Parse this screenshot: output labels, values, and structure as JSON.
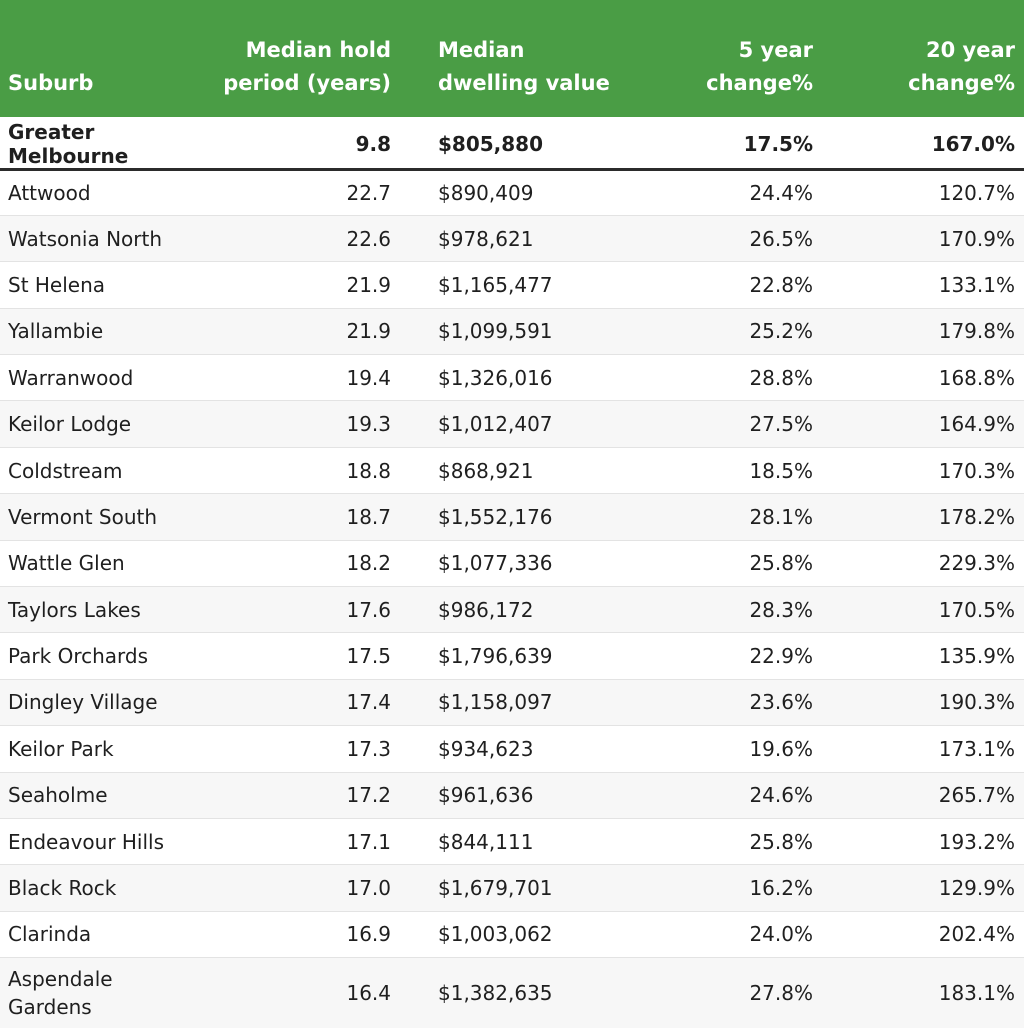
{
  "headers": {
    "suburb": "Suburb",
    "hold": "Median hold period (years)",
    "value": "Median dwelling value",
    "five": "5 year change%",
    "twenty": "20 year change%"
  },
  "summary": {
    "suburb": "Greater Melbourne",
    "hold": "9.8",
    "value": "$805,880",
    "five": "17.5%",
    "twenty": "167.0%"
  },
  "rows": [
    {
      "suburb": "Attwood",
      "hold": "22.7",
      "value": "$890,409",
      "five": "24.4%",
      "twenty": "120.7%"
    },
    {
      "suburb": "Watsonia North",
      "hold": "22.6",
      "value": "$978,621",
      "five": "26.5%",
      "twenty": "170.9%"
    },
    {
      "suburb": "St Helena",
      "hold": "21.9",
      "value": "$1,165,477",
      "five": "22.8%",
      "twenty": "133.1%"
    },
    {
      "suburb": "Yallambie",
      "hold": "21.9",
      "value": "$1,099,591",
      "five": "25.2%",
      "twenty": "179.8%"
    },
    {
      "suburb": "Warranwood",
      "hold": "19.4",
      "value": "$1,326,016",
      "five": "28.8%",
      "twenty": "168.8%"
    },
    {
      "suburb": "Keilor Lodge",
      "hold": "19.3",
      "value": "$1,012,407",
      "five": "27.5%",
      "twenty": "164.9%"
    },
    {
      "suburb": "Coldstream",
      "hold": "18.8",
      "value": "$868,921",
      "five": "18.5%",
      "twenty": "170.3%"
    },
    {
      "suburb": "Vermont South",
      "hold": "18.7",
      "value": "$1,552,176",
      "five": "28.1%",
      "twenty": "178.2%"
    },
    {
      "suburb": "Wattle Glen",
      "hold": "18.2",
      "value": "$1,077,336",
      "five": "25.8%",
      "twenty": "229.3%"
    },
    {
      "suburb": "Taylors Lakes",
      "hold": "17.6",
      "value": "$986,172",
      "five": "28.3%",
      "twenty": "170.5%"
    },
    {
      "suburb": "Park Orchards",
      "hold": "17.5",
      "value": "$1,796,639",
      "five": "22.9%",
      "twenty": "135.9%"
    },
    {
      "suburb": "Dingley Village",
      "hold": "17.4",
      "value": "$1,158,097",
      "five": "23.6%",
      "twenty": "190.3%"
    },
    {
      "suburb": "Keilor Park",
      "hold": "17.3",
      "value": "$934,623",
      "five": "19.6%",
      "twenty": "173.1%"
    },
    {
      "suburb": "Seaholme",
      "hold": "17.2",
      "value": "$961,636",
      "five": "24.6%",
      "twenty": "265.7%"
    },
    {
      "suburb": "Endeavour Hills",
      "hold": "17.1",
      "value": "$844,111",
      "five": "25.8%",
      "twenty": "193.2%"
    },
    {
      "suburb": "Black Rock",
      "hold": "17.0",
      "value": "$1,679,701",
      "five": "16.2%",
      "twenty": "129.9%"
    },
    {
      "suburb": "Clarinda",
      "hold": "16.9",
      "value": "$1,003,062",
      "five": "24.0%",
      "twenty": "202.4%"
    },
    {
      "suburb": "Aspendale Gardens",
      "hold": "16.4",
      "value": "$1,382,635",
      "five": "27.8%",
      "twenty": "183.1%"
    }
  ],
  "colors": {
    "header_bg": "#4a9d45",
    "header_text": "#ffffff",
    "alt_row": "#f7f7f7"
  }
}
